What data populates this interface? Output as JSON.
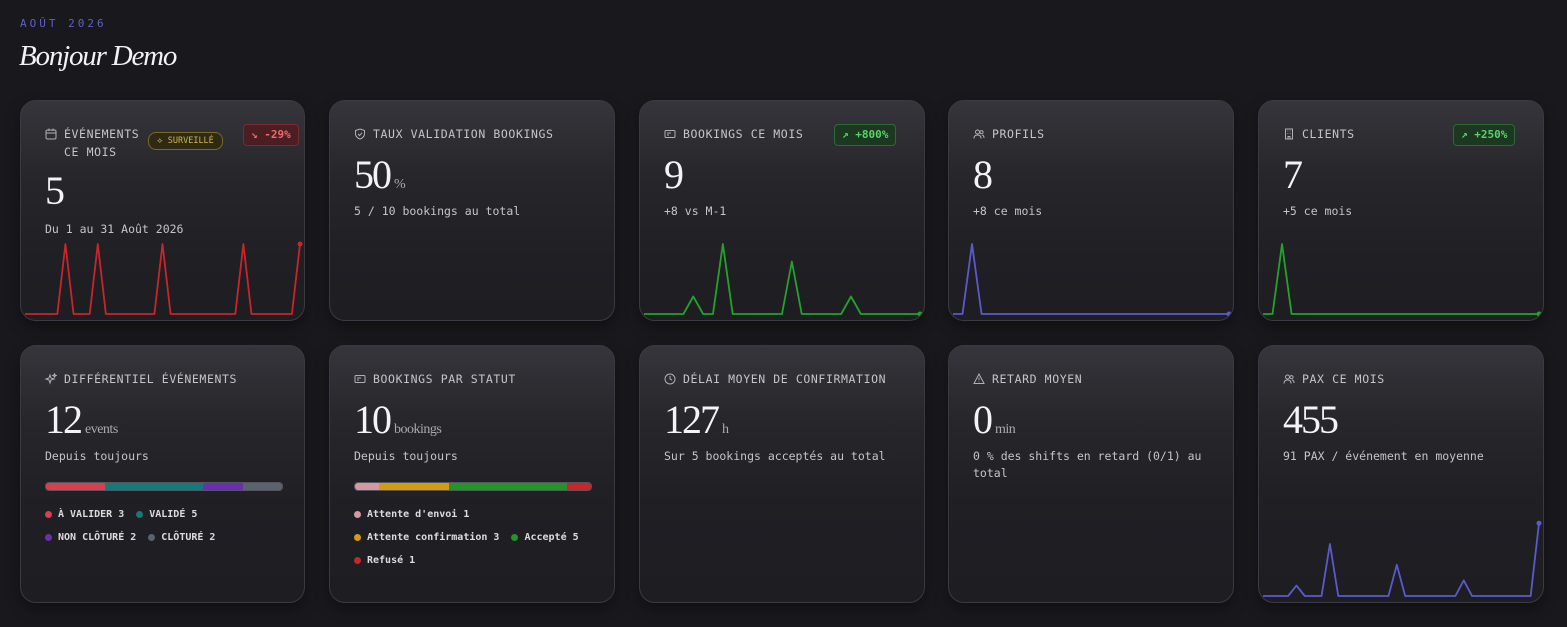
{
  "header": {
    "month": "AOÛT 2026",
    "greeting": "Bonjour Demo"
  },
  "colors": {
    "red": "#c8262a",
    "green": "#22a32a",
    "purple": "#5a5acd",
    "badge_red": "#ef6a6a",
    "badge_green": "#5bd16a",
    "month_label": "#5f5fc9"
  },
  "cards": {
    "events": {
      "icon": "calendar-icon",
      "title_line1": "ÉVÉNEMENTS",
      "title_line2": "CE MOIS",
      "pill": "⟡ SURVEILLÉ",
      "badge": "↘ -29%",
      "value": "5",
      "sub": "Du 1 au 31 Août 2026",
      "spark": [
        0,
        0,
        0,
        0,
        0,
        1,
        0,
        0,
        0,
        1,
        0,
        0,
        0,
        0,
        0,
        0,
        0,
        1,
        0,
        0,
        0,
        0,
        0,
        0,
        0,
        0,
        0,
        1,
        0,
        0,
        0,
        0,
        0,
        0,
        1
      ]
    },
    "validation": {
      "icon": "shield-check-icon",
      "title": "TAUX VALIDATION BOOKINGS",
      "value": "50",
      "unit": "%",
      "sub": "5 / 10 bookings au total"
    },
    "bookings_month": {
      "icon": "ticket-icon",
      "title": "BOOKINGS CE MOIS",
      "badge": "↗ +800%",
      "value": "9",
      "sub": "+8 vs M-1",
      "spark": [
        0,
        0,
        0,
        0,
        0,
        0.25,
        0,
        0,
        1,
        0,
        0,
        0,
        0,
        0,
        0,
        0.75,
        0,
        0,
        0,
        0,
        0,
        0.25,
        0,
        0,
        0,
        0,
        0,
        0,
        0
      ]
    },
    "profiles": {
      "icon": "users-icon",
      "title": "PROFILS",
      "value": "8",
      "sub": "+8 ce mois",
      "spark": [
        0,
        0,
        1,
        0,
        0,
        0,
        0,
        0,
        0,
        0,
        0,
        0,
        0,
        0,
        0,
        0,
        0,
        0,
        0,
        0,
        0,
        0,
        0,
        0,
        0,
        0,
        0,
        0,
        0,
        0
      ]
    },
    "clients": {
      "icon": "building-icon",
      "title": "CLIENTS",
      "badge": "↗ +250%",
      "value": "7",
      "sub": "+5 ce mois",
      "spark": [
        0,
        0,
        1,
        0,
        0,
        0,
        0,
        0,
        0,
        0,
        0,
        0,
        0,
        0,
        0,
        0,
        0,
        0,
        0,
        0,
        0,
        0,
        0,
        0,
        0,
        0,
        0,
        0,
        0,
        0
      ]
    },
    "diff": {
      "icon": "sparkles-icon",
      "title": "DIFFÉRENTIEL ÉVÉNEMENTS",
      "value": "12",
      "unit": "events",
      "sub": "Depuis toujours",
      "segments": [
        {
          "label": "À VALIDER",
          "count": "3",
          "color": "#d8404f"
        },
        {
          "label": "VALIDÉ",
          "count": "5",
          "color": "#127a78"
        },
        {
          "label": "NON CLÔTURÉ",
          "count": "2",
          "color": "#6a2fb0"
        },
        {
          "label": "CLÔTURÉ",
          "count": "2",
          "color": "#5a6270"
        }
      ]
    },
    "status": {
      "icon": "ticket-icon",
      "title": "BOOKINGS PAR STATUT",
      "value": "10",
      "unit": "bookings",
      "sub": "Depuis toujours",
      "segments": [
        {
          "label": "Attente d'envoi",
          "count": "1",
          "color": "#d49aa3"
        },
        {
          "label": "Attente confirmation",
          "count": "3",
          "color": "#d39b12"
        },
        {
          "label": "Accepté",
          "count": "5",
          "color": "#22952a"
        },
        {
          "label": "Refusé",
          "count": "1",
          "color": "#c8262a"
        }
      ]
    },
    "delay": {
      "icon": "clock-icon",
      "title": "DÉLAI MOYEN DE CONFIRMATION",
      "value": "127",
      "unit": "h",
      "sub": "Sur 5 bookings acceptés au total"
    },
    "late": {
      "icon": "warning-icon",
      "title": "RETARD MOYEN",
      "value": "0",
      "unit": "min",
      "sub": "0 % des shifts en retard (0/1) au total"
    },
    "pax": {
      "icon": "users-icon",
      "title": "PAX CE MOIS",
      "value": "455",
      "sub": "91 PAX / événement en moyenne",
      "spark": [
        0,
        0,
        0,
        0,
        0.2,
        0,
        0,
        0,
        1,
        0,
        0,
        0,
        0,
        0,
        0,
        0,
        0.6,
        0,
        0,
        0,
        0,
        0,
        0,
        0,
        0.3,
        0,
        0,
        0,
        0,
        0,
        0,
        0,
        0,
        1.4
      ]
    }
  }
}
